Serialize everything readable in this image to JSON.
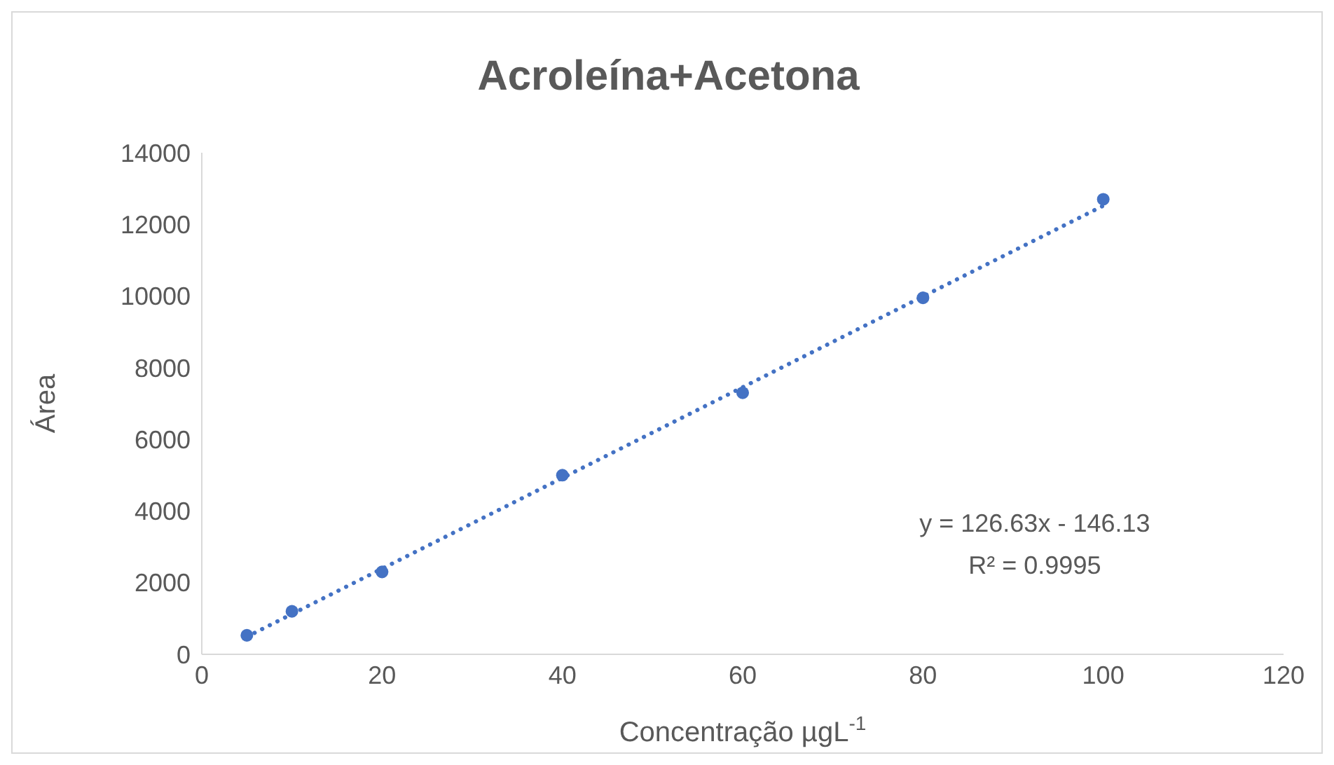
{
  "chart_data": {
    "type": "scatter",
    "title": "Acroleína+Acetona",
    "xlabel": "Concentração µgL$^{-1}$",
    "ylabel": "Área",
    "xlim": [
      0,
      120
    ],
    "xticks": [
      0,
      20,
      40,
      60,
      80,
      100,
      120
    ],
    "ylim": [
      0,
      14000
    ],
    "yticks": [
      0,
      2000,
      4000,
      6000,
      8000,
      10000,
      12000,
      14000
    ],
    "grid": false,
    "legend": false,
    "series": [
      {
        "marker": "circle",
        "color": "#4472c4",
        "x": [
          5,
          10,
          20,
          40,
          60,
          80,
          100
        ],
        "values": [
          530,
          1200,
          2300,
          5000,
          7300,
          9950,
          12700
        ]
      },
      {
        "type": "line",
        "marker": "none",
        "color": "#4472c4",
        "line_style": "dotted",
        "x": [
          5,
          100
        ],
        "values": [
          490,
          12520
        ]
      }
    ],
    "annotations": [
      "y = 126.63x - 146.13",
      "R² = 0.9995"
    ]
  }
}
